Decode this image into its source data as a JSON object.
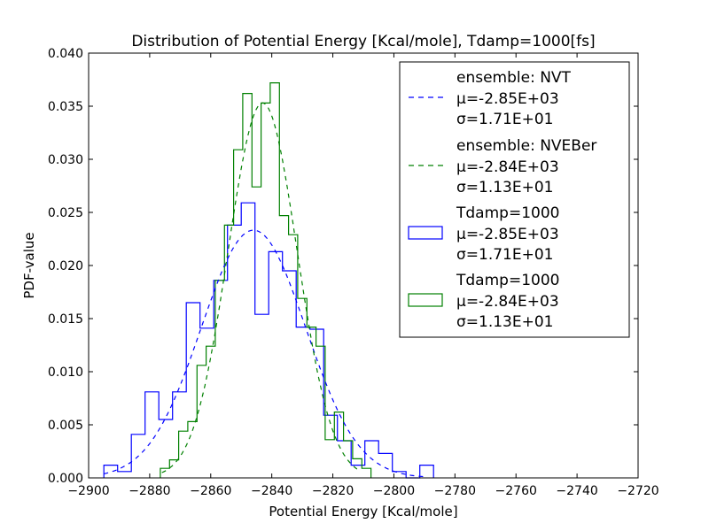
{
  "chart_data": {
    "type": "histogram",
    "title": "Distribution of Potential Energy [Kcal/mole], Tdamp=1000[fs]",
    "xlabel": "Potential Energy [Kcal/mole]",
    "ylabel": "PDF-value",
    "xlim": [
      -2900,
      -2720
    ],
    "ylim": [
      0,
      0.04
    ],
    "xticks": [
      "−2900",
      "−2880",
      "−2860",
      "−2840",
      "−2820",
      "−2800",
      "−2780",
      "−2760",
      "−2740",
      "−2720"
    ],
    "yticks": [
      "0.000",
      "0.005",
      "0.010",
      "0.015",
      "0.020",
      "0.025",
      "0.030",
      "0.035",
      "0.040"
    ],
    "grid": false,
    "legend_position": "top-right",
    "colors": {
      "nvt": "#0000ff",
      "nveber": "#008000"
    },
    "histograms": [
      {
        "name": "Tdamp=1000",
        "mu": "μ=-2.85E+03",
        "sigma": "σ=1.71E+01",
        "color": "#0000ff",
        "edges": [
          -2895,
          -2890.5,
          -2886,
          -2881.5,
          -2877,
          -2872.5,
          -2868,
          -2863.5,
          -2859,
          -2854.5,
          -2850,
          -2845.5,
          -2841,
          -2836.5,
          -2832,
          -2827.5,
          -2823,
          -2818.5,
          -2814,
          -2809.5,
          -2805,
          -2800.5,
          -2796,
          -2791.5,
          -2787
        ],
        "values": [
          0.0012,
          0.0006,
          0.0041,
          0.0081,
          0.0055,
          0.0081,
          0.0165,
          0.0141,
          0.0186,
          0.0238,
          0.0259,
          0.0154,
          0.0213,
          0.0195,
          0.0142,
          0.014,
          0.0059,
          0.0035,
          0.0012,
          0.0035,
          0.0023,
          0.0006,
          0.0,
          0.0012
        ]
      },
      {
        "name": "Tdamp=1000",
        "mu": "μ=-2.84E+03",
        "sigma": "σ=1.13E+01",
        "color": "#008000",
        "edges": [
          -2876.5,
          -2873.5,
          -2870.5,
          -2867.5,
          -2864.5,
          -2861.5,
          -2858.5,
          -2855.5,
          -2852.5,
          -2849.5,
          -2846.5,
          -2843.5,
          -2840.5,
          -2837.5,
          -2834.5,
          -2831.5,
          -2828.5,
          -2825.5,
          -2822.5,
          -2819.5,
          -2816.5,
          -2813.5,
          -2810.5,
          -2807.5
        ],
        "values": [
          0.0009,
          0.0017,
          0.0044,
          0.0053,
          0.0106,
          0.0124,
          0.0186,
          0.0238,
          0.0309,
          0.0362,
          0.0274,
          0.0353,
          0.0372,
          0.0247,
          0.0229,
          0.0169,
          0.0142,
          0.0124,
          0.0036,
          0.0062,
          0.0035,
          0.0018,
          0.0009
        ]
      }
    ],
    "fits": [
      {
        "name": "ensemble: NVT",
        "mu": "μ=-2.85E+03",
        "sigma": "σ=1.71E+01",
        "mean": -2846,
        "sd": 17.1,
        "range": [
          -2895,
          -2790
        ],
        "color": "#0000ff"
      },
      {
        "name": "ensemble: NVEBer",
        "mu": "μ=-2.84E+03",
        "sigma": "σ=1.13E+01",
        "mean": -2843,
        "sd": 11.3,
        "range": [
          -2876,
          -2811
        ],
        "color": "#008000"
      }
    ]
  }
}
